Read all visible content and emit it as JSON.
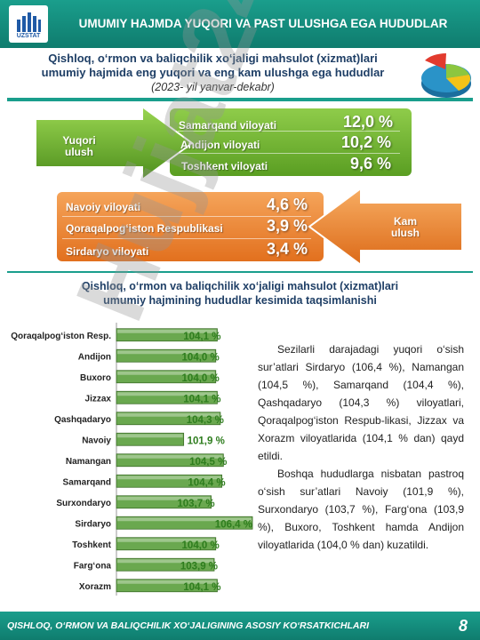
{
  "header": {
    "title": "UMUMIY HAJMDA YUQORI VA PAST ULUSHGA EGA HUDUDLAR",
    "logo_text": "UZSTAT"
  },
  "subtitle": {
    "line1": "Qishloq, o‘rmon va baliqchilik xo‘jaligi mahsulot (xizmat)lari",
    "line2": "umumiy hajmida eng yuqori va eng kam ulushga ega hududlar",
    "line3": "(2023- yil yanvar-dekabr)"
  },
  "top_share": {
    "label": "Yuqori ulush",
    "rows": [
      {
        "region": "Samarqand viloyati",
        "value": "12,0 %"
      },
      {
        "region": "Andijon viloyati",
        "value": "10,2 %"
      },
      {
        "region": "Toshkent viloyati",
        "value": "9,6 %"
      }
    ]
  },
  "low_share": {
    "label": "Kam ulush",
    "rows": [
      {
        "region": "Navoiy viloyati",
        "value": "4,6 %"
      },
      {
        "region": "Qoraqalpog‘iston Respublikasi",
        "value": "3,9 %"
      },
      {
        "region": "Sirdaryo viloyati",
        "value": "3,4 %"
      }
    ]
  },
  "chart_title": {
    "line1": "Qishloq, o‘rmon va baliqchilik xo‘jaligi mahsulot (xizmat)lari",
    "line2": "umumiy hajmining hududlar kesimida taqsimlanishi"
  },
  "chart_data": {
    "type": "bar",
    "orientation": "horizontal",
    "categories": [
      "Qoraqalpog‘iston Resp.",
      "Andijon",
      "Buxoro",
      "Jizzax",
      "Qashqadaryo",
      "Navoiy",
      "Namangan",
      "Samarqand",
      "Surxondaryo",
      "Sirdaryo",
      "Toshkent",
      "Farg‘ona",
      "Xorazm"
    ],
    "values": [
      104.1,
      104.0,
      104.0,
      104.1,
      104.3,
      101.9,
      104.5,
      104.4,
      103.7,
      106.4,
      104.0,
      103.9,
      104.1
    ],
    "labels": [
      "104,1 %",
      "104,0 %",
      "104,0 %",
      "104,1 %",
      "104,3 %",
      "101,9 %",
      "104,5 %",
      "104,4 %",
      "103,7 %",
      "106,4 %",
      "104,0 %",
      "103,9 %",
      "104,1 %"
    ],
    "xlim": [
      97.5,
      106.4
    ],
    "bar_color": "#6aa84f",
    "label_color": "#2e7d1e"
  },
  "paragraph": {
    "p1": "Sezilarli darajadagi yuqori o‘sish sur’atlari Sirdaryo (106,4 %), Namangan (104,5 %), Samarqand (104,4 %), Qashqadaryo (104,3 %) viloyatlari, Qoraqalpog‘iston Respub-likasi, Jizzax va Xorazm viloyatlarida (104,1 % dan) qayd etildi.",
    "p2": "Boshqa hududlarga nisbatan pastroq o‘sish sur’atlari Navoiy (101,9 %), Surxondaryo (103,7 %), Farg‘ona (103,9 %), Buxoro, Toshkent hamda Andijon viloyatlarida (104,0 % dan) kuzatildi."
  },
  "footer": {
    "text": "QISHLOQ, O‘RMON VA BALIQCHILIK XO‘JALIGINING ASOSIY KO‘RSATKICHLARI",
    "page": "8"
  },
  "watermark": "Hujjat24",
  "colors": {
    "header": "#1a9e8c",
    "green_panel": "#6fb536",
    "orange_panel": "#ee8a3a"
  }
}
